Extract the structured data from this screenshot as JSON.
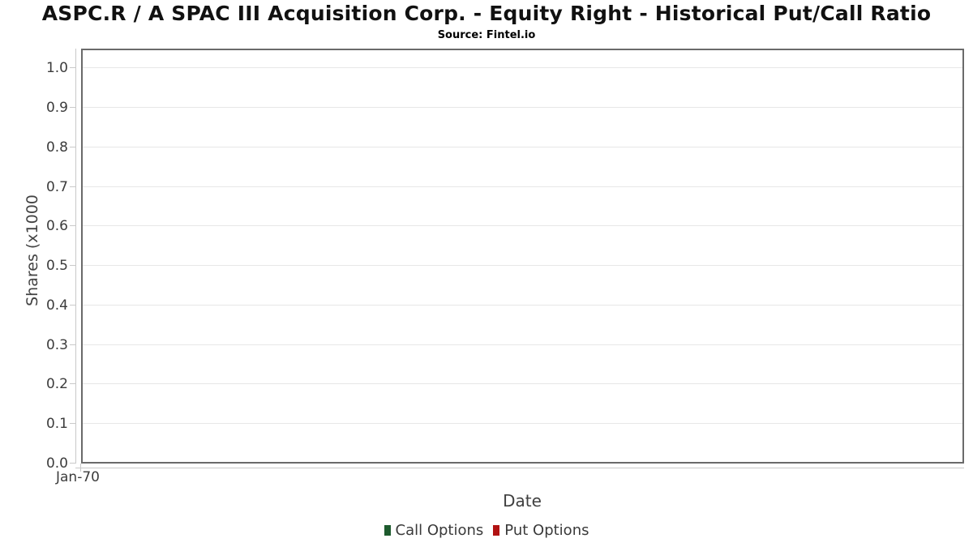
{
  "chart_data": {
    "type": "line",
    "title": "ASPC.R / A SPAC III Acquisition Corp. - Equity Right - Historical Put/Call Ratio",
    "subtitle": "Source: Fintel.io",
    "xlabel": "Date",
    "ylabel": "Shares (x1000",
    "x_ticks": [
      "Jan-70"
    ],
    "y_ticks": [
      "0.0",
      "0.1",
      "0.2",
      "0.3",
      "0.4",
      "0.5",
      "0.6",
      "0.7",
      "0.8",
      "0.9",
      "1.0"
    ],
    "ylim": [
      0,
      1.05
    ],
    "grid": "horizontal-major",
    "legend_position": "bottom",
    "series": [
      {
        "name": "Call Options",
        "color": "#1e5b2e",
        "values": []
      },
      {
        "name": "Put Options",
        "color": "#b11212",
        "values": []
      }
    ],
    "colors": {
      "plot_border": "#6a6a6a",
      "gridline": "#e7e7e7",
      "axis_line": "#c9c9c9"
    }
  }
}
